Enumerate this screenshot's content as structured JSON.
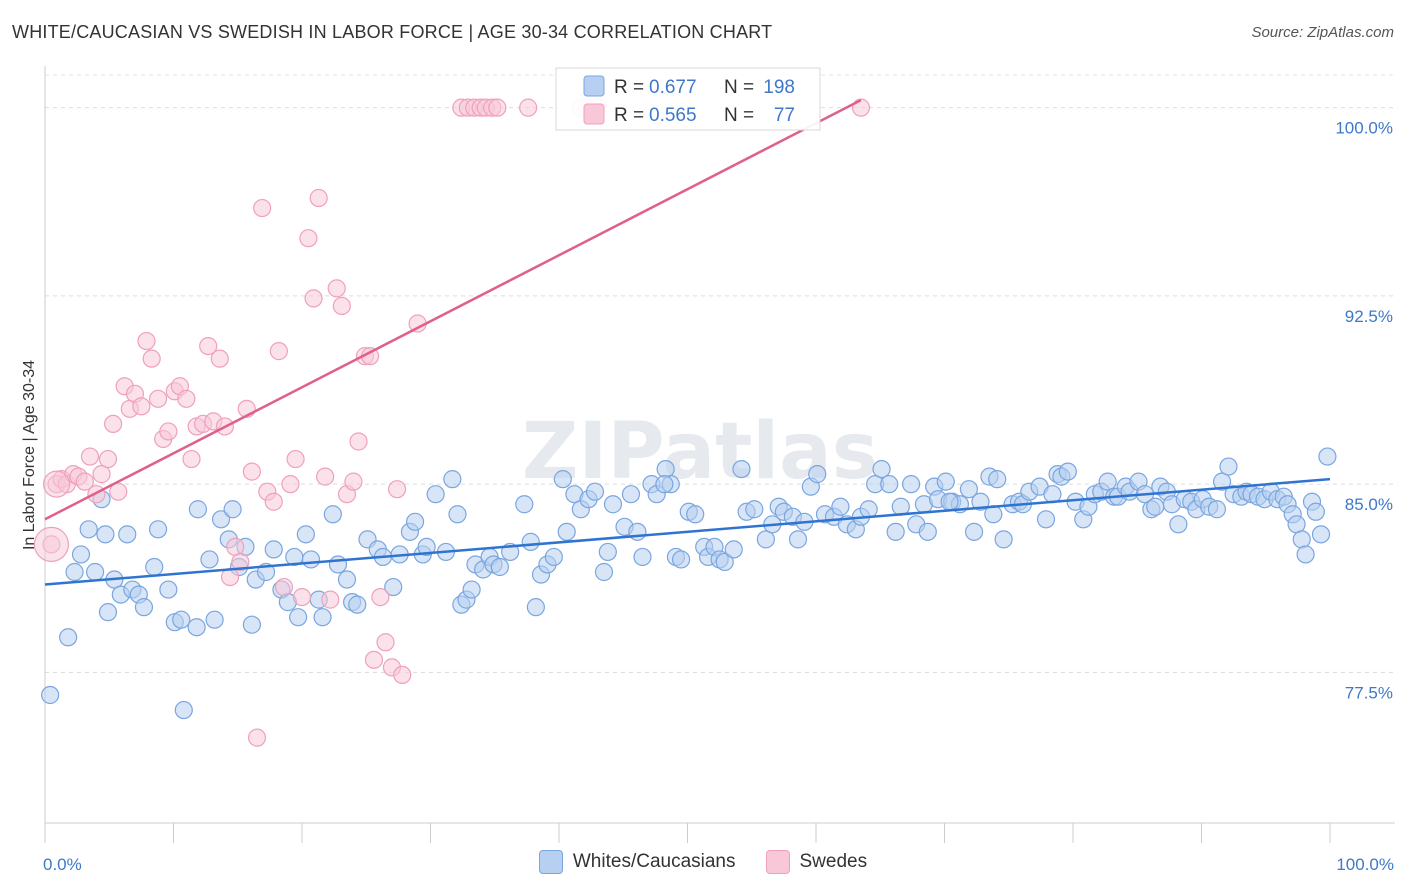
{
  "title": "WHITE/CAUCASIAN VS SWEDISH IN LABOR FORCE | AGE 30-34 CORRELATION CHART",
  "source": "Source: ZipAtlas.com",
  "watermark": "ZIPatlas",
  "chart_data": {
    "type": "scatter",
    "ylabel": "In Labor Force | Age 30-34",
    "xlim": [
      0,
      100
    ],
    "ylim": [
      71.5,
      101.5
    ],
    "x_tick_labels": [
      "0.0%",
      "100.0%"
    ],
    "y_ticks": [
      77.5,
      85.0,
      92.5,
      100.0
    ],
    "y_tick_labels": [
      "77.5%",
      "85.0%",
      "92.5%",
      "100.0%"
    ],
    "grid": "horizontal dashed",
    "legend_placement": "top-center",
    "stats": [
      {
        "r_label": "R =",
        "r_value": "0.677",
        "n_label": "N =",
        "n_value": "198"
      },
      {
        "r_label": "R =",
        "r_value": "0.565",
        "n_label": "N =",
        "n_value": "77"
      }
    ],
    "series": [
      {
        "name": "Whites/Caucasians",
        "color": "#7aa6e0",
        "fill": "#b7cff0",
        "line_color": "#2f74d0",
        "trend": [
          [
            0,
            81.0
          ],
          [
            100,
            85.2
          ]
        ],
        "points": [
          [
            0.4,
            76.6
          ],
          [
            1.8,
            78.9
          ],
          [
            2.3,
            81.5
          ],
          [
            2.8,
            82.2
          ],
          [
            3.4,
            83.2
          ],
          [
            3.9,
            81.5
          ],
          [
            4.4,
            84.4
          ],
          [
            4.7,
            83.0
          ],
          [
            4.9,
            79.9
          ],
          [
            5.4,
            81.2
          ],
          [
            5.9,
            80.6
          ],
          [
            6.4,
            83.0
          ],
          [
            6.8,
            80.8
          ],
          [
            7.3,
            80.6
          ],
          [
            7.7,
            80.1
          ],
          [
            8.5,
            81.7
          ],
          [
            8.8,
            83.2
          ],
          [
            9.6,
            80.8
          ],
          [
            10.1,
            79.5
          ],
          [
            10.6,
            79.6
          ],
          [
            11.8,
            79.3
          ],
          [
            11.9,
            84.0
          ],
          [
            12.8,
            82.0
          ],
          [
            13.2,
            79.6
          ],
          [
            13.7,
            83.6
          ],
          [
            14.3,
            82.8
          ],
          [
            14.6,
            84.0
          ],
          [
            15.1,
            81.7
          ],
          [
            15.6,
            82.5
          ],
          [
            16.1,
            79.4
          ],
          [
            16.4,
            81.2
          ],
          [
            17.2,
            81.5
          ],
          [
            17.8,
            82.4
          ],
          [
            18.4,
            80.8
          ],
          [
            18.9,
            80.3
          ],
          [
            19.4,
            82.1
          ],
          [
            19.7,
            79.7
          ],
          [
            20.3,
            83.0
          ],
          [
            20.7,
            82.0
          ],
          [
            21.3,
            80.4
          ],
          [
            21.6,
            79.7
          ],
          [
            22.4,
            83.8
          ],
          [
            22.8,
            81.8
          ],
          [
            23.5,
            81.2
          ],
          [
            23.9,
            80.3
          ],
          [
            24.3,
            80.2
          ],
          [
            25.1,
            82.8
          ],
          [
            25.9,
            82.4
          ],
          [
            26.3,
            82.1
          ],
          [
            27.1,
            80.9
          ],
          [
            27.6,
            82.2
          ],
          [
            28.4,
            83.1
          ],
          [
            28.8,
            83.5
          ],
          [
            29.4,
            82.2
          ],
          [
            29.7,
            82.5
          ],
          [
            30.4,
            84.6
          ],
          [
            31.2,
            82.3
          ],
          [
            31.7,
            85.2
          ],
          [
            32.1,
            83.8
          ],
          [
            32.4,
            80.2
          ],
          [
            32.8,
            80.4
          ],
          [
            33.2,
            80.8
          ],
          [
            33.5,
            81.8
          ],
          [
            34.1,
            81.6
          ],
          [
            34.6,
            82.1
          ],
          [
            34.9,
            81.8
          ],
          [
            35.4,
            81.7
          ],
          [
            36.2,
            82.3
          ],
          [
            37.3,
            84.2
          ],
          [
            37.8,
            82.7
          ],
          [
            38.2,
            80.1
          ],
          [
            38.6,
            81.4
          ],
          [
            39.1,
            81.8
          ],
          [
            39.6,
            82.1
          ],
          [
            40.3,
            85.2
          ],
          [
            40.6,
            83.1
          ],
          [
            41.2,
            84.6
          ],
          [
            41.7,
            84.0
          ],
          [
            42.3,
            84.4
          ],
          [
            42.8,
            84.7
          ],
          [
            43.5,
            81.5
          ],
          [
            43.8,
            82.3
          ],
          [
            44.2,
            84.2
          ],
          [
            45.1,
            83.3
          ],
          [
            45.6,
            84.6
          ],
          [
            46.1,
            83.1
          ],
          [
            46.5,
            82.1
          ],
          [
            47.2,
            85.0
          ],
          [
            47.6,
            84.6
          ],
          [
            48.3,
            85.6
          ],
          [
            48.7,
            85.0
          ],
          [
            49.1,
            82.1
          ],
          [
            49.5,
            82.0
          ],
          [
            50.1,
            83.9
          ],
          [
            50.6,
            83.8
          ],
          [
            51.3,
            82.5
          ],
          [
            51.6,
            82.1
          ],
          [
            52.1,
            82.5
          ],
          [
            52.5,
            82.0
          ],
          [
            52.9,
            81.9
          ],
          [
            53.6,
            82.4
          ],
          [
            54.2,
            85.6
          ],
          [
            54.6,
            83.9
          ],
          [
            55.2,
            84.0
          ],
          [
            56.1,
            82.8
          ],
          [
            56.6,
            83.4
          ],
          [
            57.1,
            84.1
          ],
          [
            57.5,
            83.9
          ],
          [
            58.2,
            83.7
          ],
          [
            58.6,
            82.8
          ],
          [
            59.1,
            83.5
          ],
          [
            59.6,
            84.9
          ],
          [
            60.1,
            85.4
          ],
          [
            60.7,
            83.8
          ],
          [
            61.4,
            83.7
          ],
          [
            61.9,
            84.1
          ],
          [
            62.4,
            83.4
          ],
          [
            63.1,
            83.2
          ],
          [
            63.5,
            83.7
          ],
          [
            64.1,
            84.0
          ],
          [
            64.6,
            85.0
          ],
          [
            65.1,
            85.6
          ],
          [
            65.7,
            85.0
          ],
          [
            66.2,
            83.1
          ],
          [
            66.6,
            84.1
          ],
          [
            67.4,
            85.0
          ],
          [
            67.8,
            83.4
          ],
          [
            68.4,
            84.2
          ],
          [
            68.7,
            83.1
          ],
          [
            69.2,
            84.9
          ],
          [
            69.5,
            84.4
          ],
          [
            70.1,
            85.1
          ],
          [
            70.6,
            84.3
          ],
          [
            71.2,
            84.2
          ],
          [
            71.9,
            84.8
          ],
          [
            72.3,
            83.1
          ],
          [
            72.8,
            84.3
          ],
          [
            73.5,
            85.3
          ],
          [
            73.8,
            83.8
          ],
          [
            74.1,
            85.2
          ],
          [
            74.6,
            82.8
          ],
          [
            75.3,
            84.2
          ],
          [
            75.8,
            84.3
          ],
          [
            76.1,
            84.2
          ],
          [
            76.6,
            84.7
          ],
          [
            77.4,
            84.9
          ],
          [
            77.9,
            83.6
          ],
          [
            78.4,
            84.6
          ],
          [
            78.8,
            85.4
          ],
          [
            79.1,
            85.3
          ],
          [
            79.6,
            85.5
          ],
          [
            80.2,
            84.3
          ],
          [
            80.8,
            83.6
          ],
          [
            81.2,
            84.1
          ],
          [
            81.7,
            84.6
          ],
          [
            82.2,
            84.7
          ],
          [
            82.7,
            85.1
          ],
          [
            83.2,
            84.5
          ],
          [
            83.5,
            84.5
          ],
          [
            84.1,
            84.9
          ],
          [
            84.4,
            84.7
          ],
          [
            85.1,
            85.1
          ],
          [
            85.6,
            84.6
          ],
          [
            86.1,
            84.0
          ],
          [
            86.4,
            84.1
          ],
          [
            86.8,
            84.9
          ],
          [
            87.3,
            84.7
          ],
          [
            87.7,
            84.2
          ],
          [
            88.2,
            83.4
          ],
          [
            88.7,
            84.4
          ],
          [
            89.2,
            84.3
          ],
          [
            89.6,
            84.0
          ],
          [
            90.1,
            84.4
          ],
          [
            90.6,
            84.1
          ],
          [
            91.2,
            84.0
          ],
          [
            91.6,
            85.1
          ],
          [
            92.1,
            85.7
          ],
          [
            92.5,
            84.6
          ],
          [
            93.1,
            84.5
          ],
          [
            93.5,
            84.7
          ],
          [
            93.9,
            84.6
          ],
          [
            94.4,
            84.5
          ],
          [
            94.9,
            84.4
          ],
          [
            95.4,
            84.7
          ],
          [
            95.9,
            84.4
          ],
          [
            96.4,
            84.5
          ],
          [
            96.7,
            84.2
          ],
          [
            97.1,
            83.8
          ],
          [
            97.4,
            83.4
          ],
          [
            97.8,
            82.8
          ],
          [
            98.1,
            82.2
          ],
          [
            98.6,
            84.3
          ],
          [
            98.9,
            83.9
          ],
          [
            99.3,
            83.0
          ],
          [
            99.8,
            86.1
          ],
          [
            10.8,
            76.0
          ],
          [
            48.2,
            85.0
          ],
          [
            70.4,
            84.3
          ]
        ]
      },
      {
        "name": "Swedes",
        "color": "#f0a0bc",
        "fill": "#f8c8d8",
        "line_color": "#e0608c",
        "trend": [
          [
            0,
            83.6
          ],
          [
            63.5,
            100.3
          ]
        ],
        "points": [
          [
            0.5,
            82.6
          ],
          [
            0.9,
            85.0
          ],
          [
            1.3,
            85.2
          ],
          [
            1.7,
            85.0
          ],
          [
            2.2,
            85.4
          ],
          [
            2.6,
            85.3
          ],
          [
            3.1,
            85.1
          ],
          [
            3.5,
            86.1
          ],
          [
            4.0,
            84.6
          ],
          [
            4.4,
            85.4
          ],
          [
            4.9,
            86.0
          ],
          [
            5.3,
            87.4
          ],
          [
            5.7,
            84.7
          ],
          [
            6.2,
            88.9
          ],
          [
            6.6,
            88.0
          ],
          [
            7.0,
            88.6
          ],
          [
            7.5,
            88.1
          ],
          [
            7.9,
            90.7
          ],
          [
            8.3,
            90.0
          ],
          [
            8.8,
            88.4
          ],
          [
            9.2,
            86.8
          ],
          [
            9.6,
            87.1
          ],
          [
            10.1,
            88.7
          ],
          [
            10.5,
            88.9
          ],
          [
            11.0,
            88.4
          ],
          [
            11.4,
            86.0
          ],
          [
            11.8,
            87.3
          ],
          [
            12.3,
            87.4
          ],
          [
            12.7,
            90.5
          ],
          [
            13.1,
            87.5
          ],
          [
            13.6,
            90.0
          ],
          [
            14.0,
            87.3
          ],
          [
            14.4,
            81.3
          ],
          [
            14.8,
            82.5
          ],
          [
            15.2,
            81.9
          ],
          [
            15.7,
            88.0
          ],
          [
            16.1,
            85.5
          ],
          [
            16.5,
            74.9
          ],
          [
            16.9,
            96.0
          ],
          [
            17.3,
            84.7
          ],
          [
            17.8,
            84.3
          ],
          [
            18.2,
            90.3
          ],
          [
            18.6,
            80.9
          ],
          [
            19.1,
            85.0
          ],
          [
            19.5,
            86.0
          ],
          [
            20.0,
            80.5
          ],
          [
            20.5,
            94.8
          ],
          [
            20.9,
            92.4
          ],
          [
            21.3,
            96.4
          ],
          [
            21.8,
            85.3
          ],
          [
            22.2,
            80.4
          ],
          [
            22.7,
            92.8
          ],
          [
            23.1,
            92.1
          ],
          [
            23.5,
            84.6
          ],
          [
            24.0,
            85.1
          ],
          [
            24.4,
            86.7
          ],
          [
            24.9,
            90.1
          ],
          [
            25.3,
            90.1
          ],
          [
            25.6,
            78.0
          ],
          [
            26.1,
            80.5
          ],
          [
            26.5,
            78.7
          ],
          [
            27.0,
            77.7
          ],
          [
            27.4,
            84.8
          ],
          [
            27.8,
            77.4
          ],
          [
            29.0,
            91.4
          ],
          [
            32.4,
            100.0
          ],
          [
            32.9,
            100.0
          ],
          [
            33.4,
            100.0
          ],
          [
            33.9,
            100.0
          ],
          [
            34.3,
            100.0
          ],
          [
            34.8,
            100.0
          ],
          [
            35.2,
            100.0
          ],
          [
            37.6,
            100.0
          ],
          [
            41.7,
            100.0
          ],
          [
            42.2,
            100.0
          ],
          [
            43.0,
            100.0
          ],
          [
            63.5,
            100.0
          ]
        ]
      }
    ]
  },
  "legend_bottom": [
    {
      "label": "Whites/Caucasians",
      "fill": "#b7cff0",
      "stroke": "#7aa6e0"
    },
    {
      "label": "Swedes",
      "fill": "#f8c8d8",
      "stroke": "#f0a0bc"
    }
  ]
}
